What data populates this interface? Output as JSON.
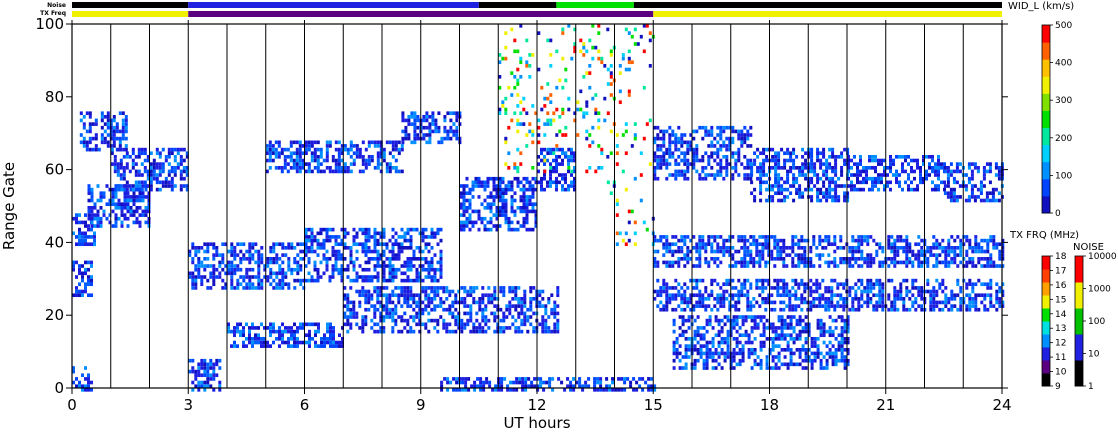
{
  "chart_data": {
    "type": "heatmap",
    "xlabel": "UT hours",
    "ylabel": "Range Gate",
    "xlim": [
      0,
      24
    ],
    "ylim": [
      0,
      100
    ],
    "x_ticks": [
      "0",
      "3",
      "6",
      "9",
      "12",
      "15",
      "18",
      "21",
      "24"
    ],
    "y_ticks": [
      "0",
      "20",
      "40",
      "60",
      "80",
      "100"
    ],
    "grid_hours": [
      1,
      2,
      3,
      4,
      5,
      6,
      7,
      8,
      9,
      10,
      11,
      12,
      13,
      14,
      15,
      16,
      17,
      18,
      19,
      20,
      21,
      22,
      23
    ],
    "scatter_bands": [
      {
        "t0": 0.0,
        "t1": 0.6,
        "g0": 40,
        "g1": 48,
        "level": "blue"
      },
      {
        "t0": 0.0,
        "t1": 0.5,
        "g0": 26,
        "g1": 35,
        "level": "blue"
      },
      {
        "t0": 0.2,
        "t1": 1.4,
        "g0": 66,
        "g1": 76,
        "level": "blue"
      },
      {
        "t0": 0.4,
        "t1": 2.0,
        "g0": 45,
        "g1": 56,
        "level": "blue"
      },
      {
        "t0": 1.0,
        "t1": 3.0,
        "g0": 55,
        "g1": 66,
        "level": "blue"
      },
      {
        "t0": 0.0,
        "t1": 0.5,
        "g0": 0,
        "g1": 6,
        "level": "blue"
      },
      {
        "t0": 3.0,
        "t1": 3.8,
        "g0": 0,
        "g1": 8,
        "level": "blue"
      },
      {
        "t0": 3.0,
        "t1": 6.0,
        "g0": 28,
        "g1": 40,
        "level": "blue"
      },
      {
        "t0": 6.0,
        "t1": 9.5,
        "g0": 30,
        "g1": 44,
        "level": "blue"
      },
      {
        "t0": 4.0,
        "t1": 7.0,
        "g0": 12,
        "g1": 18,
        "level": "blue"
      },
      {
        "t0": 7.0,
        "t1": 12.5,
        "g0": 16,
        "g1": 28,
        "level": "blue"
      },
      {
        "t0": 5.0,
        "t1": 8.5,
        "g0": 60,
        "g1": 68,
        "level": "blue"
      },
      {
        "t0": 8.5,
        "t1": 10.0,
        "g0": 68,
        "g1": 76,
        "level": "blue"
      },
      {
        "t0": 10.0,
        "t1": 12.0,
        "g0": 44,
        "g1": 58,
        "level": "blue"
      },
      {
        "t0": 12.0,
        "t1": 13.0,
        "g0": 55,
        "g1": 66,
        "level": "blue"
      },
      {
        "t0": 15.0,
        "t1": 17.5,
        "g0": 58,
        "g1": 72,
        "level": "blue"
      },
      {
        "t0": 17.5,
        "t1": 20.0,
        "g0": 52,
        "g1": 66,
        "level": "blue"
      },
      {
        "t0": 20.0,
        "t1": 22.5,
        "g0": 55,
        "g1": 64,
        "level": "blue"
      },
      {
        "t0": 22.5,
        "t1": 24.0,
        "g0": 52,
        "g1": 62,
        "level": "blue"
      },
      {
        "t0": 15.0,
        "t1": 24.0,
        "g0": 34,
        "g1": 42,
        "level": "blue"
      },
      {
        "t0": 15.0,
        "t1": 24.0,
        "g0": 22,
        "g1": 30,
        "level": "blue"
      },
      {
        "t0": 15.5,
        "t1": 20.0,
        "g0": 6,
        "g1": 20,
        "level": "blue"
      },
      {
        "t0": 9.5,
        "t1": 15.0,
        "g0": 0,
        "g1": 3,
        "level": "blue"
      },
      {
        "t0": 13.8,
        "t1": 15.0,
        "g0": 40,
        "g1": 100,
        "level": "mixed"
      },
      {
        "t0": 11.0,
        "t1": 13.8,
        "g0": 60,
        "g1": 100,
        "level": "mixed"
      }
    ],
    "colorbars": [
      {
        "title": "WID_L (km/s)",
        "ticks": [
          "0",
          "100",
          "200",
          "300",
          "400",
          "500"
        ],
        "colors": [
          "#1010c0",
          "#0044ff",
          "#0090ff",
          "#00d0ff",
          "#00e8a0",
          "#00e000",
          "#80e000",
          "#f0f000",
          "#ffc000",
          "#ff6000",
          "#ff0000"
        ]
      },
      {
        "title": "TX FRQ (MHz)",
        "ticks": [
          "9",
          "10",
          "11",
          "12",
          "13",
          "14",
          "15",
          "16",
          "17",
          "18"
        ],
        "colors": [
          "#000000",
          "#5b0080",
          "#2020e0",
          "#0090ff",
          "#00e0e0",
          "#00e000",
          "#f0f000",
          "#ffa000",
          "#ff4000",
          "#ff0000"
        ]
      },
      {
        "title": "NOISE",
        "ticks": [
          "1",
          "10",
          "100",
          "1000",
          "10000"
        ],
        "colors": [
          "#000000",
          "#2020e0",
          "#00c000",
          "#f0f000",
          "#ff0000"
        ]
      }
    ],
    "strips": {
      "noise_label": "Noise",
      "freq_label": "TX Freq",
      "noise_segments": [
        {
          "t0": 0,
          "t1": 3,
          "color": "#000000"
        },
        {
          "t0": 3,
          "t1": 10.5,
          "color": "#2020e0"
        },
        {
          "t0": 10.5,
          "t1": 12.5,
          "color": "#000000"
        },
        {
          "t0": 12.5,
          "t1": 14.5,
          "color": "#00e000"
        },
        {
          "t0": 14.5,
          "t1": 24,
          "color": "#000000"
        }
      ],
      "freq_segments": [
        {
          "t0": 0,
          "t1": 3,
          "color": "#f0f000"
        },
        {
          "t0": 3,
          "t1": 15,
          "color": "#5b0080"
        },
        {
          "t0": 15,
          "t1": 24,
          "color": "#f0f000"
        }
      ]
    }
  }
}
